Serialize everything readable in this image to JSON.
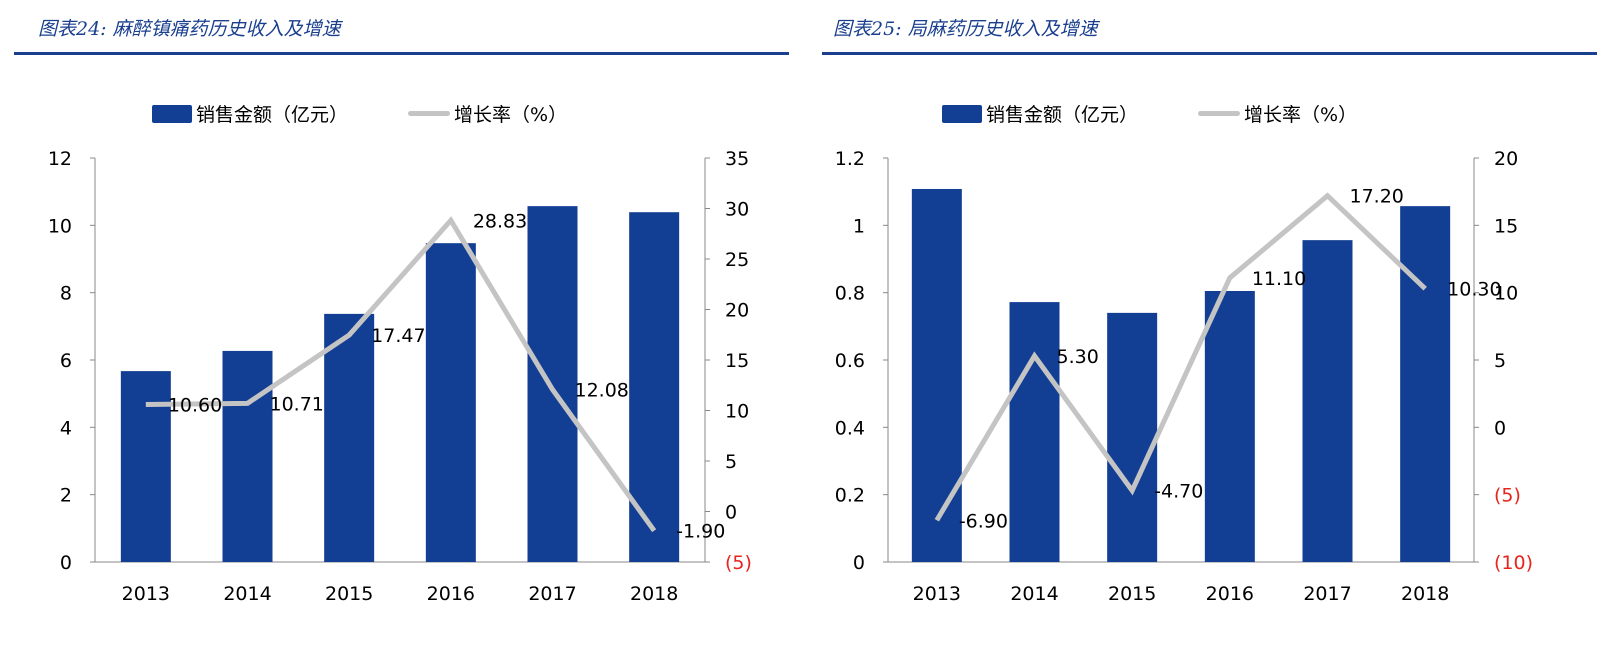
{
  "charts_meta": [
    {
      "title": "图表24: 麻醉镇痛药历史收入及增速"
    },
    {
      "title": "图表25: 局麻药历史收入及增速"
    }
  ],
  "chart_data": [
    {
      "type": "bar+line",
      "title": "图表24: 麻醉镇痛药历史收入及增速",
      "categories": [
        "2013",
        "2014",
        "2015",
        "2016",
        "2017",
        "2018"
      ],
      "series": [
        {
          "name": "销售金额（亿元）",
          "type": "bar",
          "axis": "left",
          "values": [
            5.67,
            6.27,
            7.37,
            9.47,
            10.57,
            10.39
          ]
        },
        {
          "name": "增长率（%）",
          "type": "line",
          "axis": "right",
          "values": [
            10.6,
            10.71,
            17.47,
            28.83,
            12.08,
            -1.9
          ],
          "labels": [
            "10.60",
            "10.71",
            "17.47",
            "28.83",
            "12.08",
            "-1.90"
          ]
        }
      ],
      "left_axis": {
        "ylim": [
          0,
          12
        ],
        "ticks": [
          "0",
          "2",
          "4",
          "6",
          "8",
          "10",
          "12"
        ]
      },
      "right_axis": {
        "ylim": [
          -5,
          35
        ],
        "ticks": [
          "(5)",
          "0",
          "5",
          "10",
          "15",
          "20",
          "25",
          "30",
          "35"
        ]
      },
      "legend": "top",
      "grid": false,
      "colors": {
        "bar": "#123f93",
        "line": "#c4c4c4",
        "negative_tick": "#e8251c"
      }
    },
    {
      "type": "bar+line",
      "title": "图表25: 局麻药历史收入及增速",
      "categories": [
        "2013",
        "2014",
        "2015",
        "2016",
        "2017",
        "2018"
      ],
      "series": [
        {
          "name": "销售金额（亿元）",
          "type": "bar",
          "axis": "left",
          "values": [
            1.108,
            0.772,
            0.74,
            0.805,
            0.956,
            1.057
          ]
        },
        {
          "name": "增长率（%）",
          "type": "line",
          "axis": "right",
          "values": [
            -6.9,
            5.3,
            -4.7,
            11.1,
            17.2,
            10.3
          ],
          "labels": [
            "-6.90",
            "5.30",
            "-4.70",
            "11.10",
            "17.20",
            "10.30"
          ]
        }
      ],
      "left_axis": {
        "ylim": [
          0,
          1.2
        ],
        "ticks": [
          "0",
          "0.2",
          "0.4",
          "0.6",
          "0.8",
          "1",
          "1.2"
        ]
      },
      "right_axis": {
        "ylim": [
          -10,
          20
        ],
        "ticks": [
          "(10)",
          "(5)",
          "0",
          "5",
          "10",
          "15",
          "20"
        ]
      },
      "legend": "top",
      "grid": false,
      "colors": {
        "bar": "#123f93",
        "line": "#c4c4c4",
        "negative_tick": "#e8251c"
      }
    }
  ]
}
